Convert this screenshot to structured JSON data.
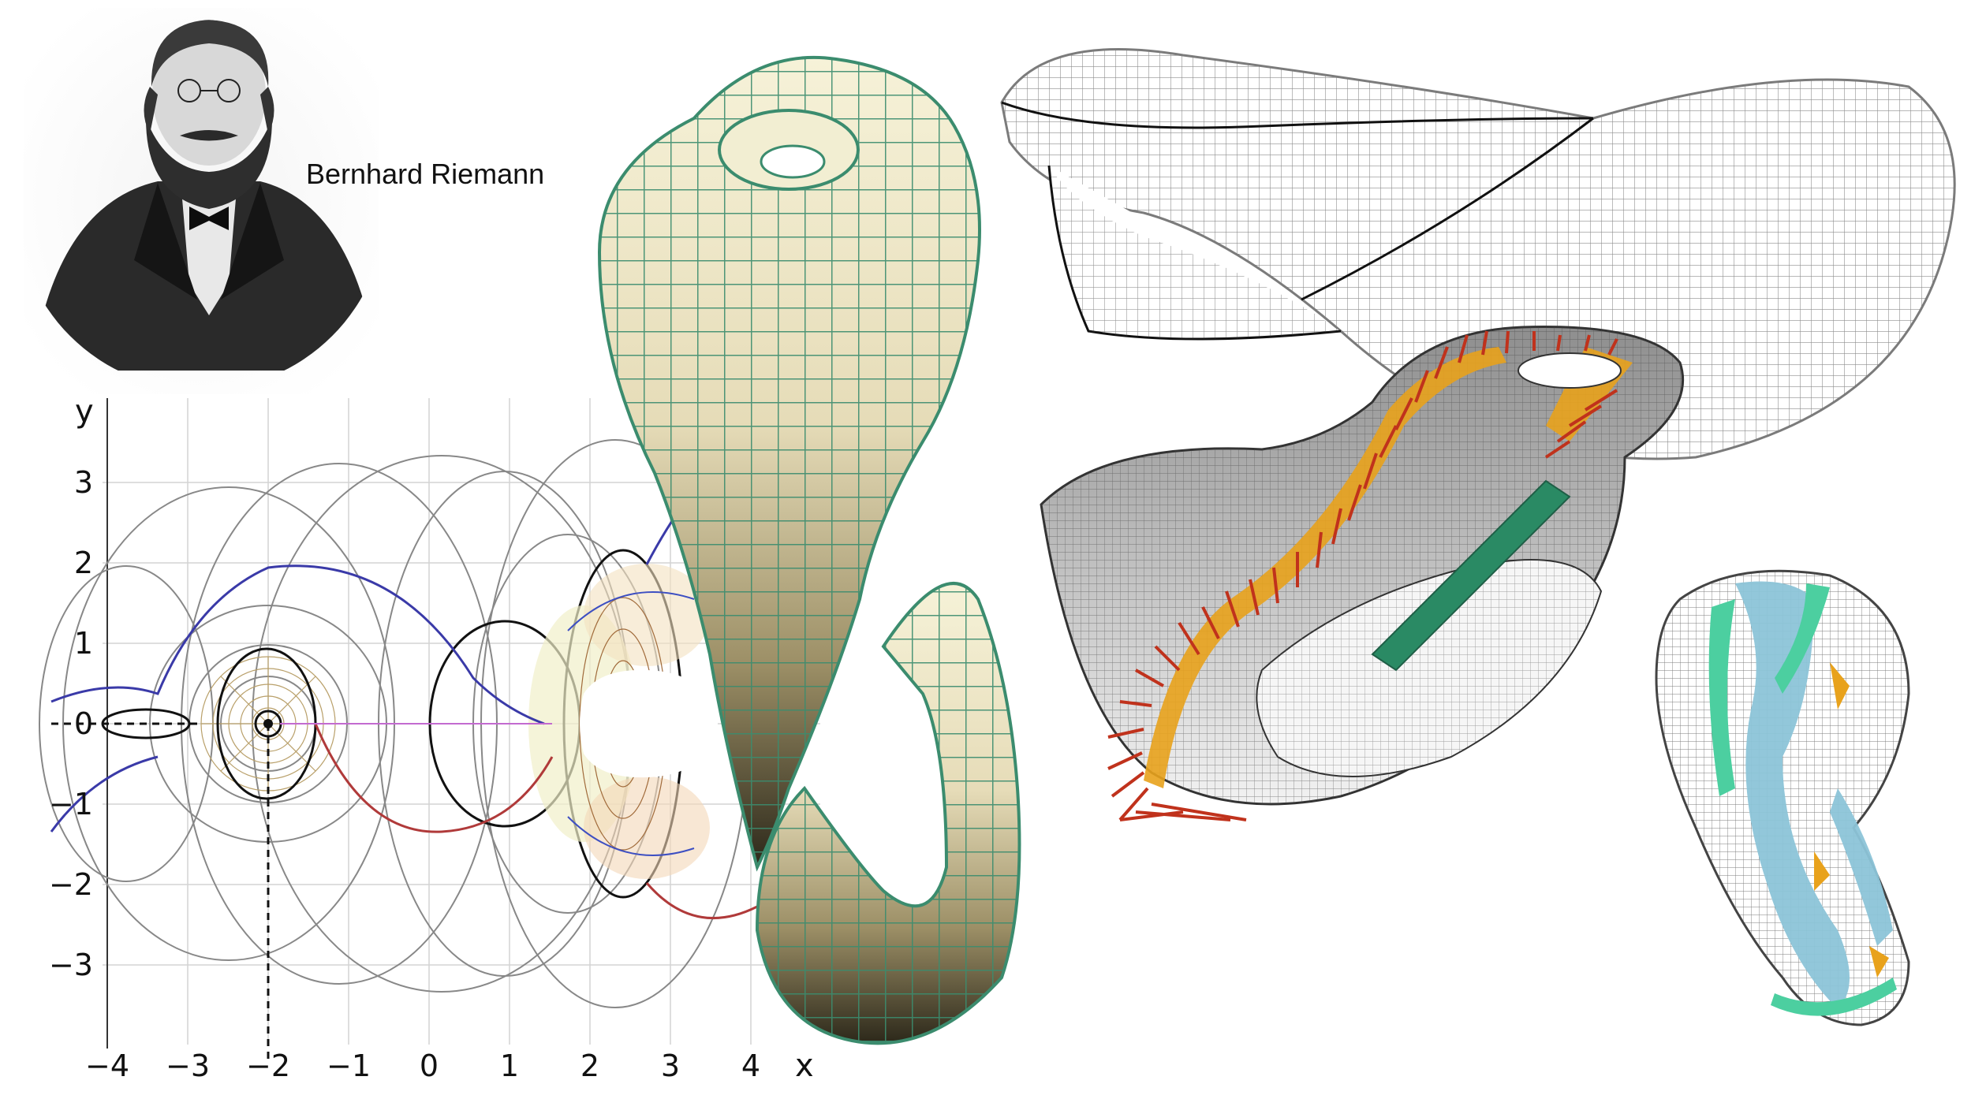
{
  "portrait": {
    "caption": "Bernhard Riemann"
  },
  "plot": {
    "y_axis_label": "y",
    "x_axis_label": "x",
    "x_ticks": [
      "−4",
      "−3",
      "−2",
      "−1",
      "0",
      "1",
      "2",
      "3",
      "4"
    ],
    "y_ticks": [
      "3",
      "2",
      "1",
      "0",
      "−1",
      "−2",
      "−3"
    ]
  },
  "colors": {
    "klein_fill_top": "#f4f0d4",
    "klein_fill_bottom": "#2e2a1c",
    "klein_mesh": "#3b8c6e",
    "vector_red": "#c0321c",
    "accent_orange": "#e8a21c",
    "accent_green": "#2a8a64",
    "accent_blue": "#8cc4d8",
    "accent_teal": "#4ccfa0"
  }
}
